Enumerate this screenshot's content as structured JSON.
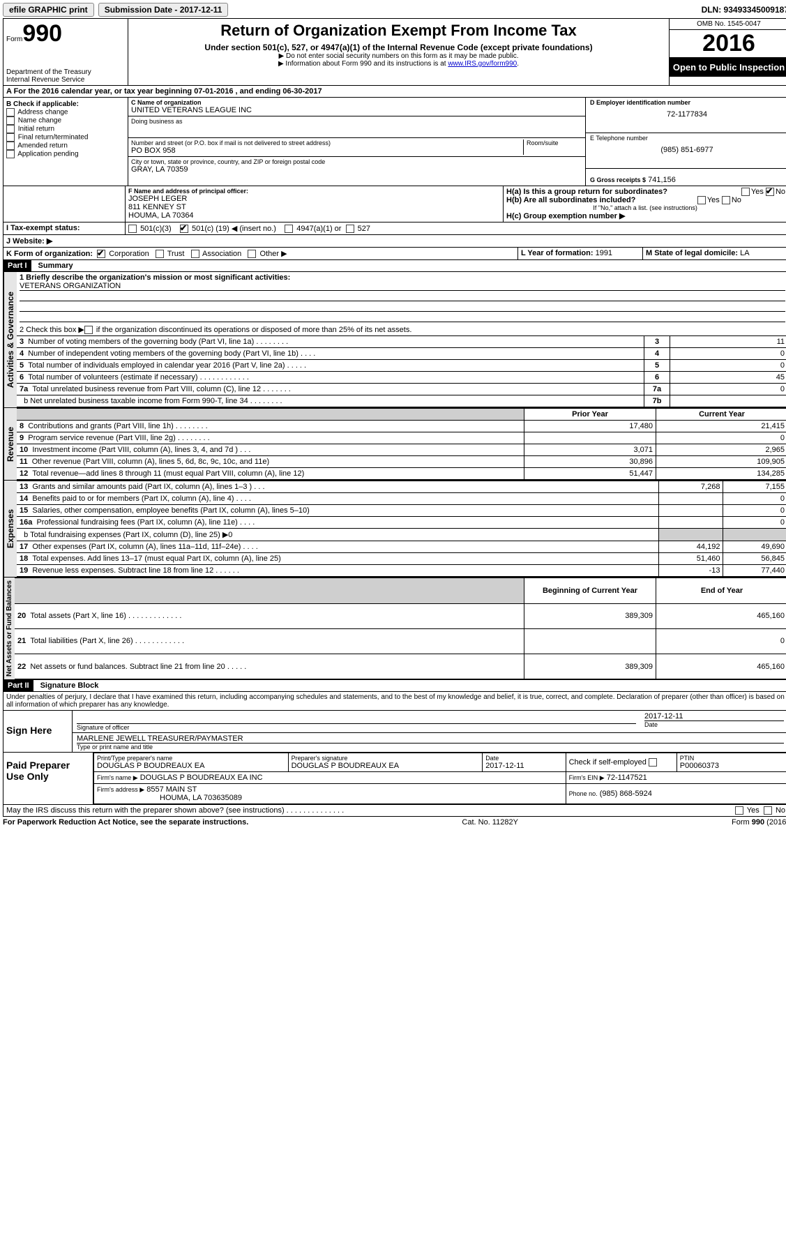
{
  "topbar": {
    "efile": "efile GRAPHIC print",
    "submission_label": "Submission Date - 2017-12-11",
    "dln": "DLN: 93493345009187"
  },
  "header": {
    "form_label_top": "Form",
    "form_number": "990",
    "dept1": "Department of the Treasury",
    "dept2": "Internal Revenue Service",
    "title": "Return of Organization Exempt From Income Tax",
    "subtitle": "Under section 501(c), 527, or 4947(a)(1) of the Internal Revenue Code (except private foundations)",
    "warn": "▶ Do not enter social security numbers on this form as it may be made public.",
    "info_pre": "▶ Information about Form 990 and its instructions is at ",
    "info_link": "www.IRS.gov/form990",
    "omb": "OMB No. 1545-0047",
    "tax_year": "2016",
    "open": "Open to Public Inspection"
  },
  "A_line": "A  For the 2016 calendar year, or tax year beginning 07-01-2016   , and ending 06-30-2017",
  "B": {
    "label": "B Check if applicable:",
    "items": [
      "Address change",
      "Name change",
      "Initial return",
      "Final return/terminated",
      "Amended return",
      "Application pending"
    ]
  },
  "C": {
    "name_label": "C Name of organization",
    "name": "UNITED VETERANS LEAGUE INC",
    "dba_label": "Doing business as",
    "street_label": "Number and street (or P.O. box if mail is not delivered to street address)",
    "room_label": "Room/suite",
    "street": "PO BOX 958",
    "city_label": "City or town, state or province, country, and ZIP or foreign postal code",
    "city": "GRAY, LA  70359"
  },
  "D": {
    "label": "D Employer identification number",
    "value": "72-1177834"
  },
  "E": {
    "label": "E Telephone number",
    "value": "(985) 851-6977"
  },
  "G": {
    "label": "G Gross receipts $",
    "value": "741,156"
  },
  "F": {
    "label": "F  Name and address of principal officer:",
    "line1": "JOSEPH LEGER",
    "line2": "811 KENNEY ST",
    "line3": "HOUMA, LA  70364"
  },
  "H": {
    "a_q": "H(a)  Is this a group return for subordinates?",
    "b_q": "H(b)  Are all subordinates included?",
    "note": "If \"No,\" attach a list. (see instructions)",
    "c": "H(c)  Group exemption number ▶",
    "yes": "Yes",
    "no": "No"
  },
  "I": {
    "label": "I  Tax-exempt status:",
    "o1": "501(c)(3)",
    "o2_pre": "501(c) (",
    "o2_num": "19",
    "o2_post": ") ◀ (insert no.)",
    "o3": "4947(a)(1) or",
    "o4": "527"
  },
  "J": {
    "label": "J  Website: ▶"
  },
  "K": {
    "label": "K Form of organization:",
    "c1": "Corporation",
    "c2": "Trust",
    "c3": "Association",
    "c4": "Other ▶"
  },
  "L": {
    "label": "L Year of formation:",
    "value": "1991"
  },
  "M": {
    "label": "M State of legal domicile:",
    "value": "LA"
  },
  "part1": {
    "hdr": "Part I",
    "title": "Summary",
    "q1": "1  Briefly describe the organization's mission or most significant activities:",
    "mission": "VETERANS ORGANIZATION",
    "q2_pre": "2   Check this box ▶",
    "q2_post": " if the organization discontinued its operations or disposed of more than 25% of its net assets.",
    "vlabel_act": "Activities & Governance",
    "vlabel_rev": "Revenue",
    "vlabel_exp": "Expenses",
    "vlabel_net": "Net Assets or Fund Balances",
    "rows_act": [
      {
        "n": "3",
        "t": "Number of voting members of the governing body (Part VI, line 1a)   .    .    .    .    .    .    .    .",
        "box": "3",
        "v": "11"
      },
      {
        "n": "4",
        "t": "Number of independent voting members of the governing body (Part VI, line 1b)    .    .    .    .",
        "box": "4",
        "v": "0"
      },
      {
        "n": "5",
        "t": "Total number of individuals employed in calendar year 2016 (Part V, line 2a)   .    .    .    .    .",
        "box": "5",
        "v": "0"
      },
      {
        "n": "6",
        "t": "Total number of volunteers (estimate if necessary)   .    .    .    .    .    .    .    .    .    .    .    .",
        "box": "6",
        "v": "45"
      },
      {
        "n": "7a",
        "t": "Total unrelated business revenue from Part VIII, column (C), line 12   .    .    .    .    .    .    .",
        "box": "7a",
        "v": "0"
      },
      {
        "n": "",
        "t": "b  Net unrelated business taxable income from Form 990-T, line 34   .    .    .    .    .    .    .    .",
        "box": "7b",
        "v": " "
      }
    ],
    "col_prior": "Prior Year",
    "col_curr": "Current Year",
    "rows_rev": [
      {
        "n": "8",
        "t": "Contributions and grants (Part VIII, line 1h)    .    .    .    .    .    .    .    .",
        "p": "17,480",
        "c": "21,415"
      },
      {
        "n": "9",
        "t": "Program service revenue (Part VIII, line 2g)   .    .    .    .    .    .    .    .",
        "p": " ",
        "c": "0"
      },
      {
        "n": "10",
        "t": "Investment income (Part VIII, column (A), lines 3, 4, and 7d )   .    .    .",
        "p": "3,071",
        "c": "2,965"
      },
      {
        "n": "11",
        "t": "Other revenue (Part VIII, column (A), lines 5, 6d, 8c, 9c, 10c, and 11e)",
        "p": "30,896",
        "c": "109,905"
      },
      {
        "n": "12",
        "t": "Total revenue—add lines 8 through 11 (must equal Part VIII, column (A), line 12)",
        "p": "51,447",
        "c": "134,285"
      }
    ],
    "rows_exp": [
      {
        "n": "13",
        "t": "Grants and similar amounts paid (Part IX, column (A), lines 1–3 )   .    .    .",
        "p": "7,268",
        "c": "7,155"
      },
      {
        "n": "14",
        "t": "Benefits paid to or for members (Part IX, column (A), line 4)   .    .    .    .",
        "p": " ",
        "c": "0"
      },
      {
        "n": "15",
        "t": "Salaries, other compensation, employee benefits (Part IX, column (A), lines 5–10)",
        "p": " ",
        "c": "0"
      },
      {
        "n": "16a",
        "t": "Professional fundraising fees (Part IX, column (A), line 11e)   .    .    .    .",
        "p": " ",
        "c": "0"
      },
      {
        "n": "",
        "t": "b  Total fundraising expenses (Part IX, column (D), line 25) ▶0",
        "p": "shade",
        "c": "shade"
      },
      {
        "n": "17",
        "t": "Other expenses (Part IX, column (A), lines 11a–11d, 11f–24e)   .    .    .    .",
        "p": "44,192",
        "c": "49,690"
      },
      {
        "n": "18",
        "t": "Total expenses. Add lines 13–17 (must equal Part IX, column (A), line 25)",
        "p": "51,460",
        "c": "56,845"
      },
      {
        "n": "19",
        "t": "Revenue less expenses. Subtract line 18 from line 12   .    .    .    .    .    .",
        "p": "-13",
        "c": "77,440"
      }
    ],
    "col_begin": "Beginning of Current Year",
    "col_end": "End of Year",
    "rows_net": [
      {
        "n": "20",
        "t": "Total assets (Part X, line 16)   .    .    .    .    .    .    .    .    .    .    .    .    .",
        "p": "389,309",
        "c": "465,160"
      },
      {
        "n": "21",
        "t": "Total liabilities (Part X, line 26)   .    .    .    .    .    .    .    .    .    .    .    .",
        "p": " ",
        "c": "0"
      },
      {
        "n": "22",
        "t": "Net assets or fund balances. Subtract line 21 from line 20   .    .    .    .    .",
        "p": "389,309",
        "c": "465,160"
      }
    ]
  },
  "part2": {
    "hdr": "Part II",
    "title": "Signature Block",
    "perjury": "Under penalties of perjury, I declare that I have examined this return, including accompanying schedules and statements, and to the best of my knowledge and belief, it is true, correct, and complete. Declaration of preparer (other than officer) is based on all information of which preparer has any knowledge.",
    "sign_here": "Sign Here",
    "sig_label": "Signature of officer",
    "date_label": "Date",
    "date_val": "2017-12-11",
    "name_val": "MARLENE JEWELL TREASURER/PAYMASTER",
    "name_label": "Type or print name and title",
    "paid": "Paid Preparer Use Only",
    "prep_name_label": "Print/Type preparer's name",
    "prep_name": "DOUGLAS P BOUDREAUX EA",
    "prep_sig_label": "Preparer's signature",
    "prep_sig": "DOUGLAS P BOUDREAUX EA",
    "prep_date": "2017-12-11",
    "self_emp": "Check         if self-employed",
    "ptin_label": "PTIN",
    "ptin": "P00060373",
    "firm_name_label": "Firm's name    ▶",
    "firm_name": "DOUGLAS P BOUDREAUX EA INC",
    "firm_ein_label": "Firm's EIN ▶",
    "firm_ein": "72-1147521",
    "firm_addr_label": "Firm's address ▶",
    "firm_addr1": "8557 MAIN ST",
    "firm_addr2": "HOUMA, LA  703635089",
    "phone_label": "Phone no.",
    "phone": "(985) 868-5924",
    "discuss": "May the IRS discuss this return with the preparer shown above? (see instructions)   .    .    .    .    .    .    .    .    .    .    .    .    .    .",
    "yes": "Yes",
    "no": "No"
  },
  "footer": {
    "left": "For Paperwork Reduction Act Notice, see the separate instructions.",
    "mid": "Cat. No. 11282Y",
    "right": "Form 990 (2016)"
  }
}
